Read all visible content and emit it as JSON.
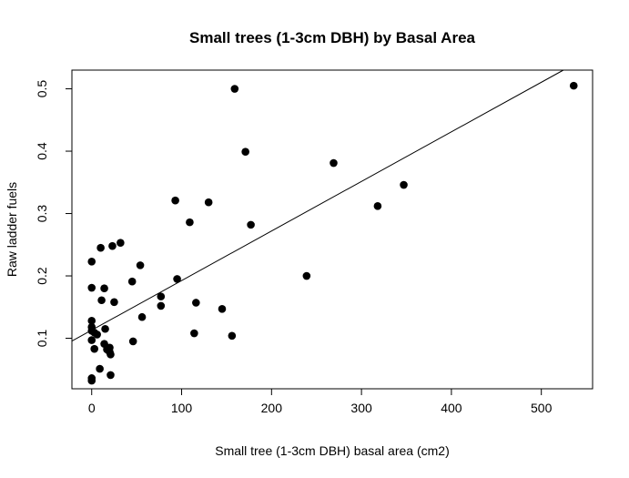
{
  "chart_data": {
    "type": "scatter",
    "title": "Small trees (1-3cm DBH) by Basal Area",
    "xlabel": "Small tree (1-3cm DBH) basal area (cm2)",
    "ylabel": "Raw ladder fuels",
    "xlim": [
      -22,
      557
    ],
    "ylim": [
      0.019,
      0.53
    ],
    "x_ticks": [
      0,
      100,
      200,
      300,
      400,
      500
    ],
    "x_tick_labels": [
      "0",
      "100",
      "200",
      "300",
      "400",
      "500"
    ],
    "y_ticks": [
      0.1,
      0.2,
      0.3,
      0.4,
      0.5
    ],
    "y_tick_labels": [
      "0.1",
      "0.2",
      "0.3",
      "0.4",
      "0.5"
    ],
    "grid": false,
    "fit_line": {
      "intercept": 0.113,
      "slope": 0.000795
    },
    "points": [
      {
        "x": 0,
        "y": 0.223
      },
      {
        "x": 0,
        "y": 0.181
      },
      {
        "x": 0,
        "y": 0.128
      },
      {
        "x": 0,
        "y": 0.118
      },
      {
        "x": 0,
        "y": 0.112
      },
      {
        "x": 0,
        "y": 0.097
      },
      {
        "x": 0,
        "y": 0.036
      },
      {
        "x": 0,
        "y": 0.032
      },
      {
        "x": 3,
        "y": 0.109
      },
      {
        "x": 3,
        "y": 0.083
      },
      {
        "x": 6,
        "y": 0.106
      },
      {
        "x": 9,
        "y": 0.051
      },
      {
        "x": 10,
        "y": 0.245
      },
      {
        "x": 11,
        "y": 0.161
      },
      {
        "x": 14,
        "y": 0.18
      },
      {
        "x": 14,
        "y": 0.091
      },
      {
        "x": 15,
        "y": 0.115
      },
      {
        "x": 17,
        "y": 0.082
      },
      {
        "x": 20,
        "y": 0.085
      },
      {
        "x": 20,
        "y": 0.078
      },
      {
        "x": 21,
        "y": 0.074
      },
      {
        "x": 21,
        "y": 0.041
      },
      {
        "x": 23,
        "y": 0.248
      },
      {
        "x": 25,
        "y": 0.158
      },
      {
        "x": 32,
        "y": 0.253
      },
      {
        "x": 45,
        "y": 0.191
      },
      {
        "x": 46,
        "y": 0.095
      },
      {
        "x": 54,
        "y": 0.217
      },
      {
        "x": 56,
        "y": 0.134
      },
      {
        "x": 77,
        "y": 0.167
      },
      {
        "x": 77,
        "y": 0.152
      },
      {
        "x": 93,
        "y": 0.321
      },
      {
        "x": 95,
        "y": 0.195
      },
      {
        "x": 109,
        "y": 0.286
      },
      {
        "x": 114,
        "y": 0.108
      },
      {
        "x": 116,
        "y": 0.157
      },
      {
        "x": 130,
        "y": 0.318
      },
      {
        "x": 145,
        "y": 0.147
      },
      {
        "x": 156,
        "y": 0.104
      },
      {
        "x": 159,
        "y": 0.5
      },
      {
        "x": 171,
        "y": 0.399
      },
      {
        "x": 177,
        "y": 0.282
      },
      {
        "x": 239,
        "y": 0.2
      },
      {
        "x": 269,
        "y": 0.381
      },
      {
        "x": 318,
        "y": 0.312
      },
      {
        "x": 347,
        "y": 0.346
      },
      {
        "x": 536,
        "y": 0.505
      }
    ]
  }
}
